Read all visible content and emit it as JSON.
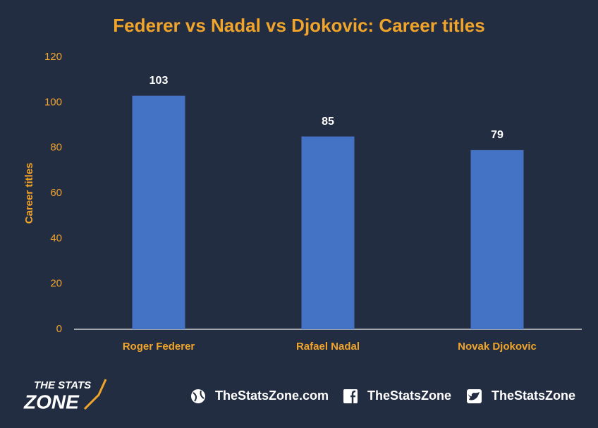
{
  "chart_data": {
    "type": "bar",
    "title": "Federer vs Nadal vs Djokovic: Career titles",
    "y_label": "Career titles",
    "categories": [
      "Roger Federer",
      "Rafael Nadal",
      "Novak Djokovic"
    ],
    "values": [
      103,
      85,
      79
    ],
    "color": "#4472c4",
    "ylim": [
      0,
      120
    ],
    "yticks": [
      0,
      20,
      40,
      60,
      80,
      100,
      120
    ],
    "grid": false,
    "data_labels": true
  },
  "footer": {
    "logo_top": "THE STATS",
    "logo_bottom": "ZONE",
    "website": "TheStatsZone.com",
    "facebook": "TheStatsZone",
    "twitter": "TheStatsZone"
  }
}
